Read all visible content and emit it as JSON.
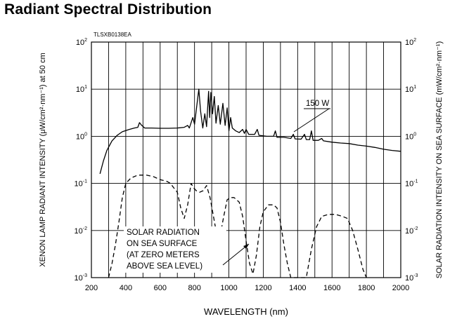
{
  "title": "Radiant Spectral Distribution",
  "chart_data": {
    "type": "line",
    "code": "TLSXB0138EA",
    "xlabel": "WAVELENGTH (nm)",
    "ylabel_left": "XENON LAMP RADIANT INTENSITY (μW/cm²·nm⁻¹) at 50 cm",
    "ylabel_right": "SOLAR RADIATION INTENSITY ON SEA SURFACE (mW/cm²·nm⁻¹)",
    "xlim": [
      200,
      2000
    ],
    "ylim": [
      0.001,
      100
    ],
    "yscale": "log",
    "grid": true,
    "x_ticks": [
      "200",
      "400",
      "600",
      "800",
      "1000",
      "1200",
      "1400",
      "1600",
      "1800",
      "2000"
    ],
    "y_ticks": [
      {
        "value": 100,
        "base": "10",
        "exp": "2"
      },
      {
        "value": 10,
        "base": "10",
        "exp": "1"
      },
      {
        "value": 1,
        "base": "10",
        "exp": "0"
      },
      {
        "value": 0.1,
        "base": "10",
        "exp": "-1"
      },
      {
        "value": 0.01,
        "base": "10",
        "exp": "-2"
      },
      {
        "value": 0.001,
        "base": "10",
        "exp": "-3"
      }
    ],
    "series": [
      {
        "name": "150 W",
        "style": "solid",
        "points": [
          [
            250,
            0.16
          ],
          [
            270,
            0.3
          ],
          [
            290,
            0.5
          ],
          [
            320,
            0.8
          ],
          [
            350,
            1.05
          ],
          [
            380,
            1.25
          ],
          [
            420,
            1.4
          ],
          [
            450,
            1.5
          ],
          [
            470,
            1.55
          ],
          [
            480,
            1.95
          ],
          [
            490,
            1.75
          ],
          [
            510,
            1.5
          ],
          [
            550,
            1.5
          ],
          [
            600,
            1.48
          ],
          [
            650,
            1.48
          ],
          [
            700,
            1.5
          ],
          [
            740,
            1.55
          ],
          [
            760,
            1.7
          ],
          [
            770,
            1.5
          ],
          [
            790,
            2.5
          ],
          [
            800,
            1.8
          ],
          [
            815,
            5.0
          ],
          [
            825,
            10.0
          ],
          [
            835,
            3.5
          ],
          [
            848,
            1.5
          ],
          [
            860,
            3.0
          ],
          [
            870,
            1.6
          ],
          [
            882,
            9.0
          ],
          [
            888,
            2.5
          ],
          [
            895,
            8.5
          ],
          [
            905,
            3.0
          ],
          [
            915,
            7.0
          ],
          [
            925,
            1.9
          ],
          [
            938,
            4.5
          ],
          [
            950,
            1.8
          ],
          [
            965,
            5.0
          ],
          [
            978,
            1.7
          ],
          [
            990,
            4.0
          ],
          [
            1000,
            1.3
          ],
          [
            1010,
            2.5
          ],
          [
            1020,
            1.5
          ],
          [
            1040,
            1.3
          ],
          [
            1060,
            1.2
          ],
          [
            1080,
            1.4
          ],
          [
            1090,
            1.15
          ],
          [
            1100,
            1.4
          ],
          [
            1115,
            1.1
          ],
          [
            1150,
            1.1
          ],
          [
            1165,
            1.4
          ],
          [
            1175,
            1.05
          ],
          [
            1220,
            1.0
          ],
          [
            1260,
            1.0
          ],
          [
            1270,
            1.3
          ],
          [
            1280,
            0.95
          ],
          [
            1320,
            0.95
          ],
          [
            1360,
            0.9
          ],
          [
            1375,
            1.1
          ],
          [
            1385,
            0.88
          ],
          [
            1420,
            0.87
          ],
          [
            1440,
            1.1
          ],
          [
            1450,
            0.85
          ],
          [
            1470,
            0.85
          ],
          [
            1480,
            1.3
          ],
          [
            1490,
            0.82
          ],
          [
            1520,
            0.82
          ],
          [
            1540,
            0.9
          ],
          [
            1550,
            0.8
          ],
          [
            1600,
            0.75
          ],
          [
            1650,
            0.72
          ],
          [
            1700,
            0.7
          ],
          [
            1750,
            0.65
          ],
          [
            1800,
            0.62
          ],
          [
            1850,
            0.58
          ],
          [
            1900,
            0.53
          ],
          [
            1950,
            0.5
          ],
          [
            2000,
            0.48
          ]
        ]
      },
      {
        "name": "SOLAR RADIATION ON SEA SURFACE (AT ZERO METERS ABOVE SEA LEVEL)",
        "style": "dashed",
        "points": [
          [
            300,
            0.001
          ],
          [
            320,
            0.002
          ],
          [
            340,
            0.005
          ],
          [
            360,
            0.015
          ],
          [
            380,
            0.05
          ],
          [
            400,
            0.1
          ],
          [
            430,
            0.13
          ],
          [
            470,
            0.15
          ],
          [
            520,
            0.15
          ],
          [
            560,
            0.14
          ],
          [
            600,
            0.12
          ],
          [
            640,
            0.11
          ],
          [
            660,
            0.1
          ],
          [
            680,
            0.08
          ],
          [
            700,
            0.065
          ],
          [
            720,
            0.03
          ],
          [
            740,
            0.018
          ],
          [
            760,
            0.035
          ],
          [
            780,
            0.1
          ],
          [
            795,
            0.08
          ],
          [
            810,
            0.07
          ],
          [
            830,
            0.065
          ],
          [
            850,
            0.07
          ],
          [
            870,
            0.09
          ],
          [
            890,
            0.05
          ],
          [
            910,
            0.02
          ],
          [
            930,
            0.008
          ],
          [
            950,
            0.008
          ],
          [
            970,
            0.02
          ],
          [
            990,
            0.045
          ],
          [
            1010,
            0.05
          ],
          [
            1030,
            0.05
          ],
          [
            1060,
            0.04
          ],
          [
            1080,
            0.02
          ],
          [
            1100,
            0.006
          ],
          [
            1120,
            0.002
          ],
          [
            1140,
            0.0012
          ],
          [
            1160,
            0.003
          ],
          [
            1180,
            0.012
          ],
          [
            1200,
            0.025
          ],
          [
            1230,
            0.035
          ],
          [
            1260,
            0.035
          ],
          [
            1280,
            0.03
          ],
          [
            1300,
            0.015
          ],
          [
            1320,
            0.005
          ],
          [
            1340,
            0.002
          ],
          [
            1360,
            0.001
          ],
          [
            1450,
            0.001
          ],
          [
            1480,
            0.004
          ],
          [
            1510,
            0.012
          ],
          [
            1540,
            0.02
          ],
          [
            1580,
            0.022
          ],
          [
            1620,
            0.022
          ],
          [
            1660,
            0.02
          ],
          [
            1690,
            0.018
          ],
          [
            1720,
            0.01
          ],
          [
            1750,
            0.004
          ],
          [
            1780,
            0.0015
          ],
          [
            1800,
            0.001
          ]
        ]
      }
    ],
    "annotations": [
      {
        "text": "150 W"
      },
      {
        "lines": [
          "SOLAR RADIATION",
          "ON SEA SURFACE",
          "(AT ZERO METERS",
          "ABOVE SEA LEVEL)"
        ]
      }
    ]
  }
}
